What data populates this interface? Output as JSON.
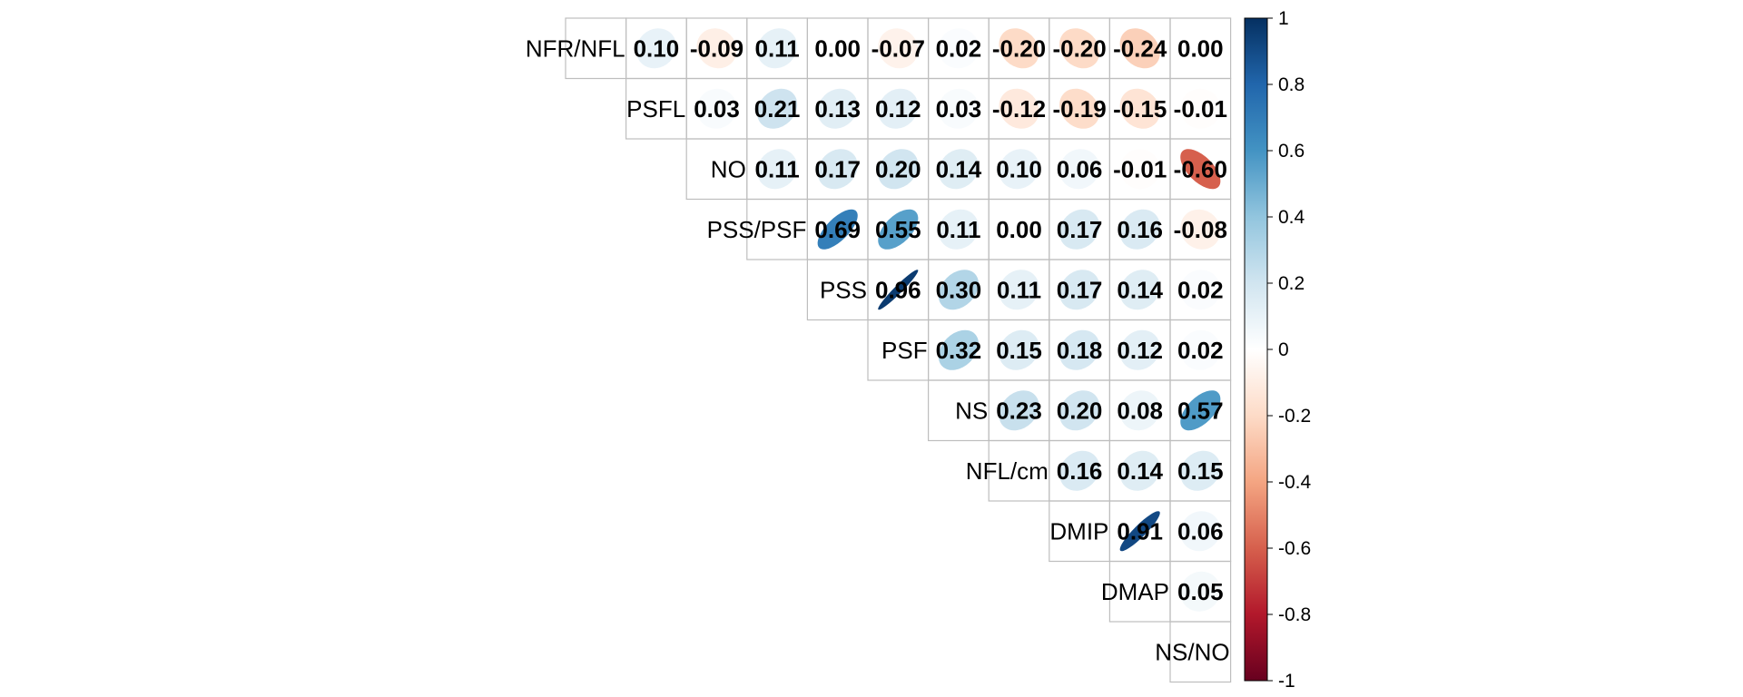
{
  "chart_data": {
    "type": "heatmap",
    "style": "correlation-matrix-upper-ellipse",
    "variables": [
      "NFR/NFL",
      "PSFL",
      "NO",
      "PSS/PSF",
      "PSS",
      "PSF",
      "NS",
      "NFL/cm",
      "DMIP",
      "DMAP",
      "NS/NO"
    ],
    "columns": 11,
    "cells": [
      {
        "row": 0,
        "col": 1,
        "value": 0.1,
        "label": "0.10"
      },
      {
        "row": 0,
        "col": 2,
        "value": -0.09,
        "label": "-0.09"
      },
      {
        "row": 0,
        "col": 3,
        "value": 0.11,
        "label": "0.11"
      },
      {
        "row": 0,
        "col": 4,
        "value": 0.0,
        "label": "0.00"
      },
      {
        "row": 0,
        "col": 5,
        "value": -0.07,
        "label": "-0.07"
      },
      {
        "row": 0,
        "col": 6,
        "value": 0.02,
        "label": "0.02"
      },
      {
        "row": 0,
        "col": 7,
        "value": -0.2,
        "label": "-0.20"
      },
      {
        "row": 0,
        "col": 8,
        "value": -0.2,
        "label": "-0.20"
      },
      {
        "row": 0,
        "col": 9,
        "value": -0.24,
        "label": "-0.24"
      },
      {
        "row": 0,
        "col": 10,
        "value": 0.0,
        "label": "0.00"
      },
      {
        "row": 1,
        "col": 2,
        "value": 0.03,
        "label": "0.03"
      },
      {
        "row": 1,
        "col": 3,
        "value": 0.21,
        "label": "0.21"
      },
      {
        "row": 1,
        "col": 4,
        "value": 0.13,
        "label": "0.13"
      },
      {
        "row": 1,
        "col": 5,
        "value": 0.12,
        "label": "0.12"
      },
      {
        "row": 1,
        "col": 6,
        "value": 0.03,
        "label": "0.03"
      },
      {
        "row": 1,
        "col": 7,
        "value": -0.12,
        "label": "-0.12"
      },
      {
        "row": 1,
        "col": 8,
        "value": -0.19,
        "label": "-0.19"
      },
      {
        "row": 1,
        "col": 9,
        "value": -0.15,
        "label": "-0.15"
      },
      {
        "row": 1,
        "col": 10,
        "value": -0.01,
        "label": "-0.01"
      },
      {
        "row": 2,
        "col": 3,
        "value": 0.11,
        "label": "0.11"
      },
      {
        "row": 2,
        "col": 4,
        "value": 0.17,
        "label": "0.17"
      },
      {
        "row": 2,
        "col": 5,
        "value": 0.2,
        "label": "0.20"
      },
      {
        "row": 2,
        "col": 6,
        "value": 0.14,
        "label": "0.14"
      },
      {
        "row": 2,
        "col": 7,
        "value": 0.1,
        "label": "0.10"
      },
      {
        "row": 2,
        "col": 8,
        "value": 0.06,
        "label": "0.06"
      },
      {
        "row": 2,
        "col": 9,
        "value": -0.01,
        "label": "-0.01"
      },
      {
        "row": 2,
        "col": 10,
        "value": -0.6,
        "label": "-0.60"
      },
      {
        "row": 3,
        "col": 4,
        "value": 0.69,
        "label": "0.69"
      },
      {
        "row": 3,
        "col": 5,
        "value": 0.55,
        "label": "0.55"
      },
      {
        "row": 3,
        "col": 6,
        "value": 0.11,
        "label": "0.11"
      },
      {
        "row": 3,
        "col": 7,
        "value": 0.0,
        "label": "0.00"
      },
      {
        "row": 3,
        "col": 8,
        "value": 0.17,
        "label": "0.17"
      },
      {
        "row": 3,
        "col": 9,
        "value": 0.16,
        "label": "0.16"
      },
      {
        "row": 3,
        "col": 10,
        "value": -0.08,
        "label": "-0.08"
      },
      {
        "row": 4,
        "col": 5,
        "value": 0.96,
        "label": "0.96"
      },
      {
        "row": 4,
        "col": 6,
        "value": 0.3,
        "label": "0.30"
      },
      {
        "row": 4,
        "col": 7,
        "value": 0.11,
        "label": "0.11"
      },
      {
        "row": 4,
        "col": 8,
        "value": 0.17,
        "label": "0.17"
      },
      {
        "row": 4,
        "col": 9,
        "value": 0.14,
        "label": "0.14"
      },
      {
        "row": 4,
        "col": 10,
        "value": 0.02,
        "label": "0.02"
      },
      {
        "row": 5,
        "col": 6,
        "value": 0.32,
        "label": "0.32"
      },
      {
        "row": 5,
        "col": 7,
        "value": 0.15,
        "label": "0.15"
      },
      {
        "row": 5,
        "col": 8,
        "value": 0.18,
        "label": "0.18"
      },
      {
        "row": 5,
        "col": 9,
        "value": 0.12,
        "label": "0.12"
      },
      {
        "row": 5,
        "col": 10,
        "value": 0.02,
        "label": "0.02"
      },
      {
        "row": 6,
        "col": 7,
        "value": 0.23,
        "label": "0.23"
      },
      {
        "row": 6,
        "col": 8,
        "value": 0.2,
        "label": "0.20"
      },
      {
        "row": 6,
        "col": 9,
        "value": 0.08,
        "label": "0.08"
      },
      {
        "row": 6,
        "col": 10,
        "value": 0.57,
        "label": "0.57"
      },
      {
        "row": 7,
        "col": 8,
        "value": 0.16,
        "label": "0.16"
      },
      {
        "row": 7,
        "col": 9,
        "value": 0.14,
        "label": "0.14"
      },
      {
        "row": 7,
        "col": 10,
        "value": 0.15,
        "label": "0.15"
      },
      {
        "row": 8,
        "col": 9,
        "value": 0.91,
        "label": "0.91"
      },
      {
        "row": 8,
        "col": 10,
        "value": 0.06,
        "label": "0.06"
      },
      {
        "row": 9,
        "col": 10,
        "value": 0.05,
        "label": "0.05"
      }
    ],
    "colorbar": {
      "range": [
        -1,
        1
      ],
      "ticks": [
        "1",
        "0.8",
        "0.6",
        "0.4",
        "0.2",
        "0",
        "-0.2",
        "-0.4",
        "-0.6",
        "-0.8",
        "-1"
      ],
      "tick_values": [
        1,
        0.8,
        0.6,
        0.4,
        0.2,
        0,
        -0.2,
        -0.4,
        -0.6,
        -0.8,
        -1
      ],
      "palette": [
        "#67001F",
        "#B2182B",
        "#D6604D",
        "#F4A582",
        "#FDDBC7",
        "#FFFFFF",
        "#D1E5F0",
        "#92C5DE",
        "#4393C3",
        "#2166AC",
        "#053061"
      ]
    },
    "grid_color": "#BEBEBE",
    "title": "",
    "xlabel": "",
    "ylabel": ""
  }
}
